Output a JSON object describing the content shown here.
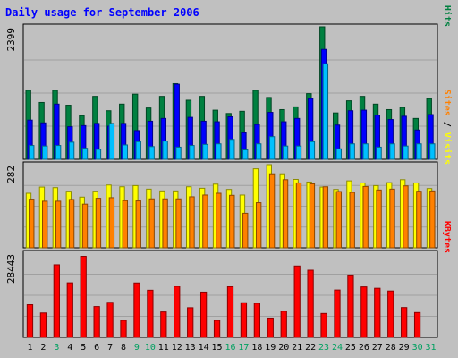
{
  "chart_data": {
    "type": "bar",
    "title": "Daily usage for September 2006",
    "categories": [
      "1",
      "2",
      "3",
      "4",
      "5",
      "6",
      "7",
      "8",
      "9",
      "10",
      "11",
      "12",
      "13",
      "14",
      "15",
      "16",
      "17",
      "18",
      "19",
      "20",
      "21",
      "22",
      "23",
      "24",
      "25",
      "26",
      "27",
      "28",
      "29",
      "30",
      "31"
    ],
    "weekend_days": [
      "3",
      "9",
      "10",
      "16",
      "17",
      "23",
      "24",
      "30",
      "31"
    ],
    "panels": [
      {
        "name": "hits-files-pages",
        "ymax_label": "2399",
        "ylim": [
          0,
          2399
        ],
        "legend": [
          "Pages",
          "Files",
          "Hits"
        ],
        "series": [
          {
            "name": "Hits",
            "color": "#008040",
            "values": [
              1250,
              1030,
              1250,
              980,
              790,
              1140,
              880,
              1000,
              1180,
              930,
              1140,
              1370,
              1070,
              1140,
              890,
              830,
              870,
              1250,
              1120,
              900,
              950,
              1190,
              2399,
              840,
              1060,
              1140,
              1000,
              900,
              940,
              740,
              1100
            ]
          },
          {
            "name": "Files",
            "color": "#0000ff",
            "values": [
              710,
              660,
              1000,
              590,
              610,
              650,
              600,
              650,
              520,
              690,
              740,
              1360,
              760,
              690,
              680,
              770,
              480,
              630,
              850,
              680,
              740,
              1100,
              1990,
              620,
              880,
              890,
              800,
              720,
              780,
              530,
              810
            ]
          },
          {
            "name": "Pages",
            "color": "#00c0ff",
            "values": [
              250,
              240,
              250,
              310,
              200,
              180,
              650,
              260,
              320,
              230,
              330,
              220,
              250,
              270,
              280,
              360,
              170,
              280,
              410,
              240,
              240,
              320,
              1730,
              190,
              280,
              280,
              220,
              280,
              240,
              280,
              280
            ]
          }
        ]
      },
      {
        "name": "visits-sites",
        "ymax_label": "282",
        "ylim": [
          0,
          282
        ],
        "legend": [
          "Sites",
          "Visits"
        ],
        "series": [
          {
            "name": "Visits",
            "color": "#ffff00",
            "values": [
              185,
              206,
              204,
              192,
              172,
              192,
              213,
              207,
              211,
              199,
              193,
              193,
              207,
              202,
              216,
              198,
              179,
              268,
              282,
              251,
              232,
              223,
              206,
              198,
              227,
              220,
              211,
              221,
              231,
              220,
              201
            ]
          },
          {
            "name": "Sites",
            "color": "#ff8000",
            "values": [
              165,
              158,
              158,
              164,
              148,
              168,
              170,
              160,
              159,
              166,
              166,
              166,
              173,
              179,
              185,
              178,
              117,
              153,
              251,
              231,
              220,
              217,
              207,
              191,
              188,
              208,
              196,
              199,
              210,
              192,
              193
            ]
          }
        ]
      },
      {
        "name": "kbytes",
        "ymax_label": "28443",
        "ylim": [
          0,
          28443
        ],
        "legend": [
          "KBytes"
        ],
        "series": [
          {
            "name": "KBytes",
            "color": "#ff0000",
            "values": [
              11040,
              8240,
              24520,
              18420,
              27380,
              10410,
              11860,
              5760,
              18380,
              15930,
              8590,
              17270,
              10020,
              15300,
              5750,
              17140,
              11720,
              11530,
              6520,
              8840,
              24120,
              22690,
              8070,
              16000,
              21060,
              17060,
              16590,
              15670,
              10080,
              8380,
              0
            ]
          }
        ]
      }
    ]
  }
}
